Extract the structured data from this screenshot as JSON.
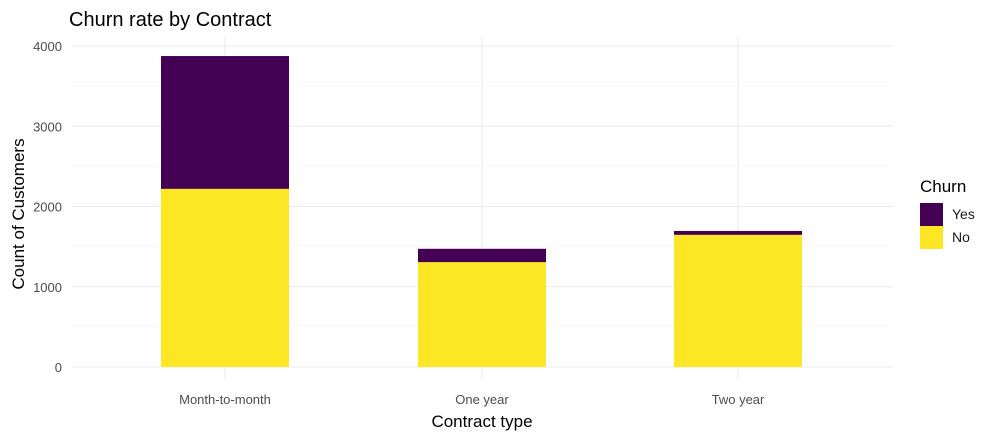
{
  "chart_data": {
    "type": "bar",
    "stacked": true,
    "title": "Churn rate by Contract",
    "xlabel": "Contract type",
    "ylabel": "Count of Customers",
    "categories": [
      "Month-to-month",
      "One year",
      "Two year"
    ],
    "series": [
      {
        "name": "No",
        "values": [
          2220,
          1307,
          1647
        ],
        "color": "#FDE725"
      },
      {
        "name": "Yes",
        "values": [
          1655,
          166,
          48
        ],
        "color": "#440154"
      }
    ],
    "ylim": [
      0,
      4000
    ],
    "yticks": [
      0,
      1000,
      2000,
      3000,
      4000
    ],
    "grid": true,
    "legend": {
      "title": "Churn",
      "position": "right",
      "entries": [
        {
          "label": "Yes",
          "color": "#440154"
        },
        {
          "label": "No",
          "color": "#FDE725"
        }
      ]
    }
  }
}
